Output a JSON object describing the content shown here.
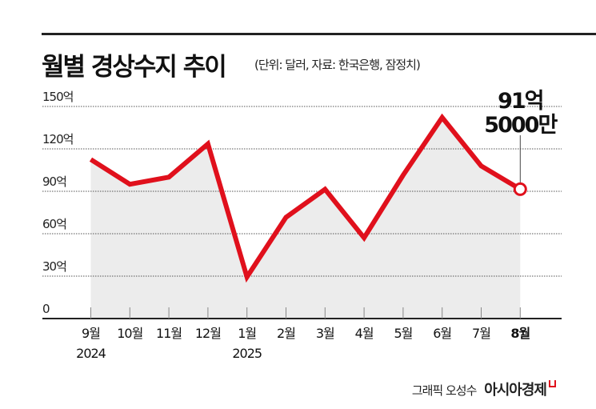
{
  "title": "월별 경상수지 추이",
  "subtitle": "(단위: 달러, 자료: 한국은행, 잠정치)",
  "footer": {
    "credit": "그래픽 오성수",
    "brand": "아시아경제"
  },
  "colors": {
    "line": "#e0101c",
    "fill": "#ececec",
    "grid": "#555555",
    "axis": "#222222"
  },
  "chart_data": {
    "type": "area",
    "title": "월별 경상수지 추이",
    "xlabel": "",
    "ylabel": "",
    "unit": "억 달러",
    "ylim": [
      0,
      150
    ],
    "yticks": [
      0,
      30,
      60,
      90,
      120,
      150
    ],
    "ytick_labels": [
      "0",
      "30억",
      "60억",
      "90억",
      "120억",
      "150억"
    ],
    "categories": [
      "9월",
      "10월",
      "11월",
      "12월",
      "1월",
      "2월",
      "3월",
      "4월",
      "5월",
      "6월",
      "7월",
      "8월"
    ],
    "year_labels": [
      {
        "index": 0,
        "label": "2024"
      },
      {
        "index": 4,
        "label": "2025"
      }
    ],
    "values": [
      112.5,
      95,
      100,
      123.5,
      29.4,
      71.6,
      91.4,
      57.1,
      101.4,
      142.2,
      107.9,
      91.5
    ],
    "grid": true,
    "annotation": {
      "index": 11,
      "line1": "91억",
      "line2": "5000만"
    }
  }
}
